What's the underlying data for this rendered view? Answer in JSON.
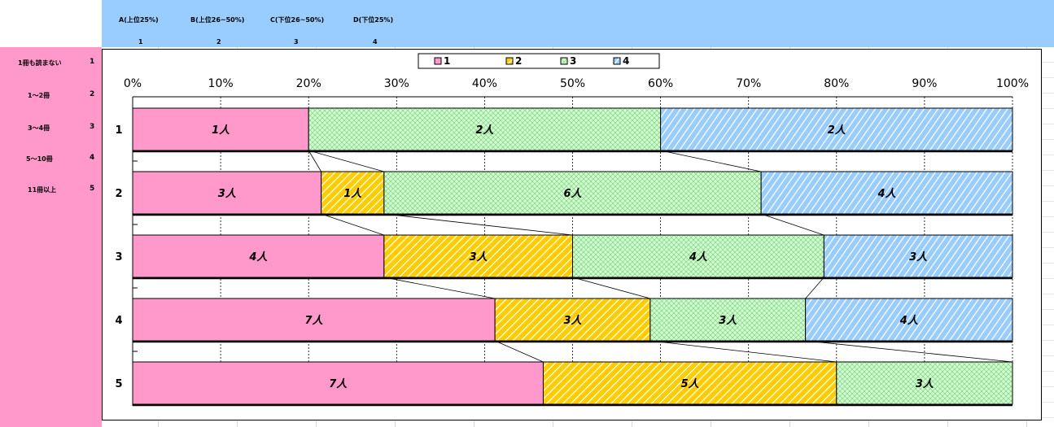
{
  "header": {
    "labels": [
      "A(上位25%)",
      "B(上位26~50%)",
      "C(下位26~50%)",
      "D(下位25%)"
    ],
    "numbers": [
      "1",
      "2",
      "3",
      "4"
    ]
  },
  "sidebar": {
    "items": [
      {
        "label": "1冊も読まない",
        "num": "1"
      },
      {
        "label": "1～2冊",
        "num": "2"
      },
      {
        "label": "3～4冊",
        "num": "3"
      },
      {
        "label": "5～10冊",
        "num": "4"
      },
      {
        "label": "11冊以上",
        "num": "5"
      }
    ]
  },
  "colors": {
    "s1": "#ff99cc",
    "s2": "#ffcc00",
    "s3": "#ccffcc",
    "s4": "#99ccff",
    "topband": "#99ccff",
    "leftband": "#ff99cc"
  },
  "chart_data": {
    "type": "bar",
    "orientation": "horizontal",
    "stacked": "percent",
    "categories": [
      "1",
      "2",
      "3",
      "4",
      "5"
    ],
    "series": [
      {
        "name": "1",
        "values": [
          1,
          3,
          4,
          7,
          7
        ],
        "labels": [
          "1人",
          "3人",
          "4人",
          "7人",
          "7人"
        ]
      },
      {
        "name": "2",
        "values": [
          0,
          1,
          3,
          3,
          5
        ],
        "labels": [
          "",
          "1人",
          "3人",
          "3人",
          "5人"
        ]
      },
      {
        "name": "3",
        "values": [
          2,
          6,
          4,
          3,
          3
        ],
        "labels": [
          "2人",
          "6人",
          "4人",
          "3人",
          "3人"
        ]
      },
      {
        "name": "4",
        "values": [
          2,
          4,
          3,
          4,
          0
        ],
        "labels": [
          "2人",
          "4人",
          "3人",
          "4人",
          ""
        ]
      }
    ],
    "xticks": [
      "0%",
      "10%",
      "20%",
      "30%",
      "40%",
      "50%",
      "60%",
      "70%",
      "80%",
      "90%",
      "100%"
    ],
    "xlim": [
      0,
      100
    ],
    "grid": true,
    "series_lines": true,
    "legend": "top"
  }
}
